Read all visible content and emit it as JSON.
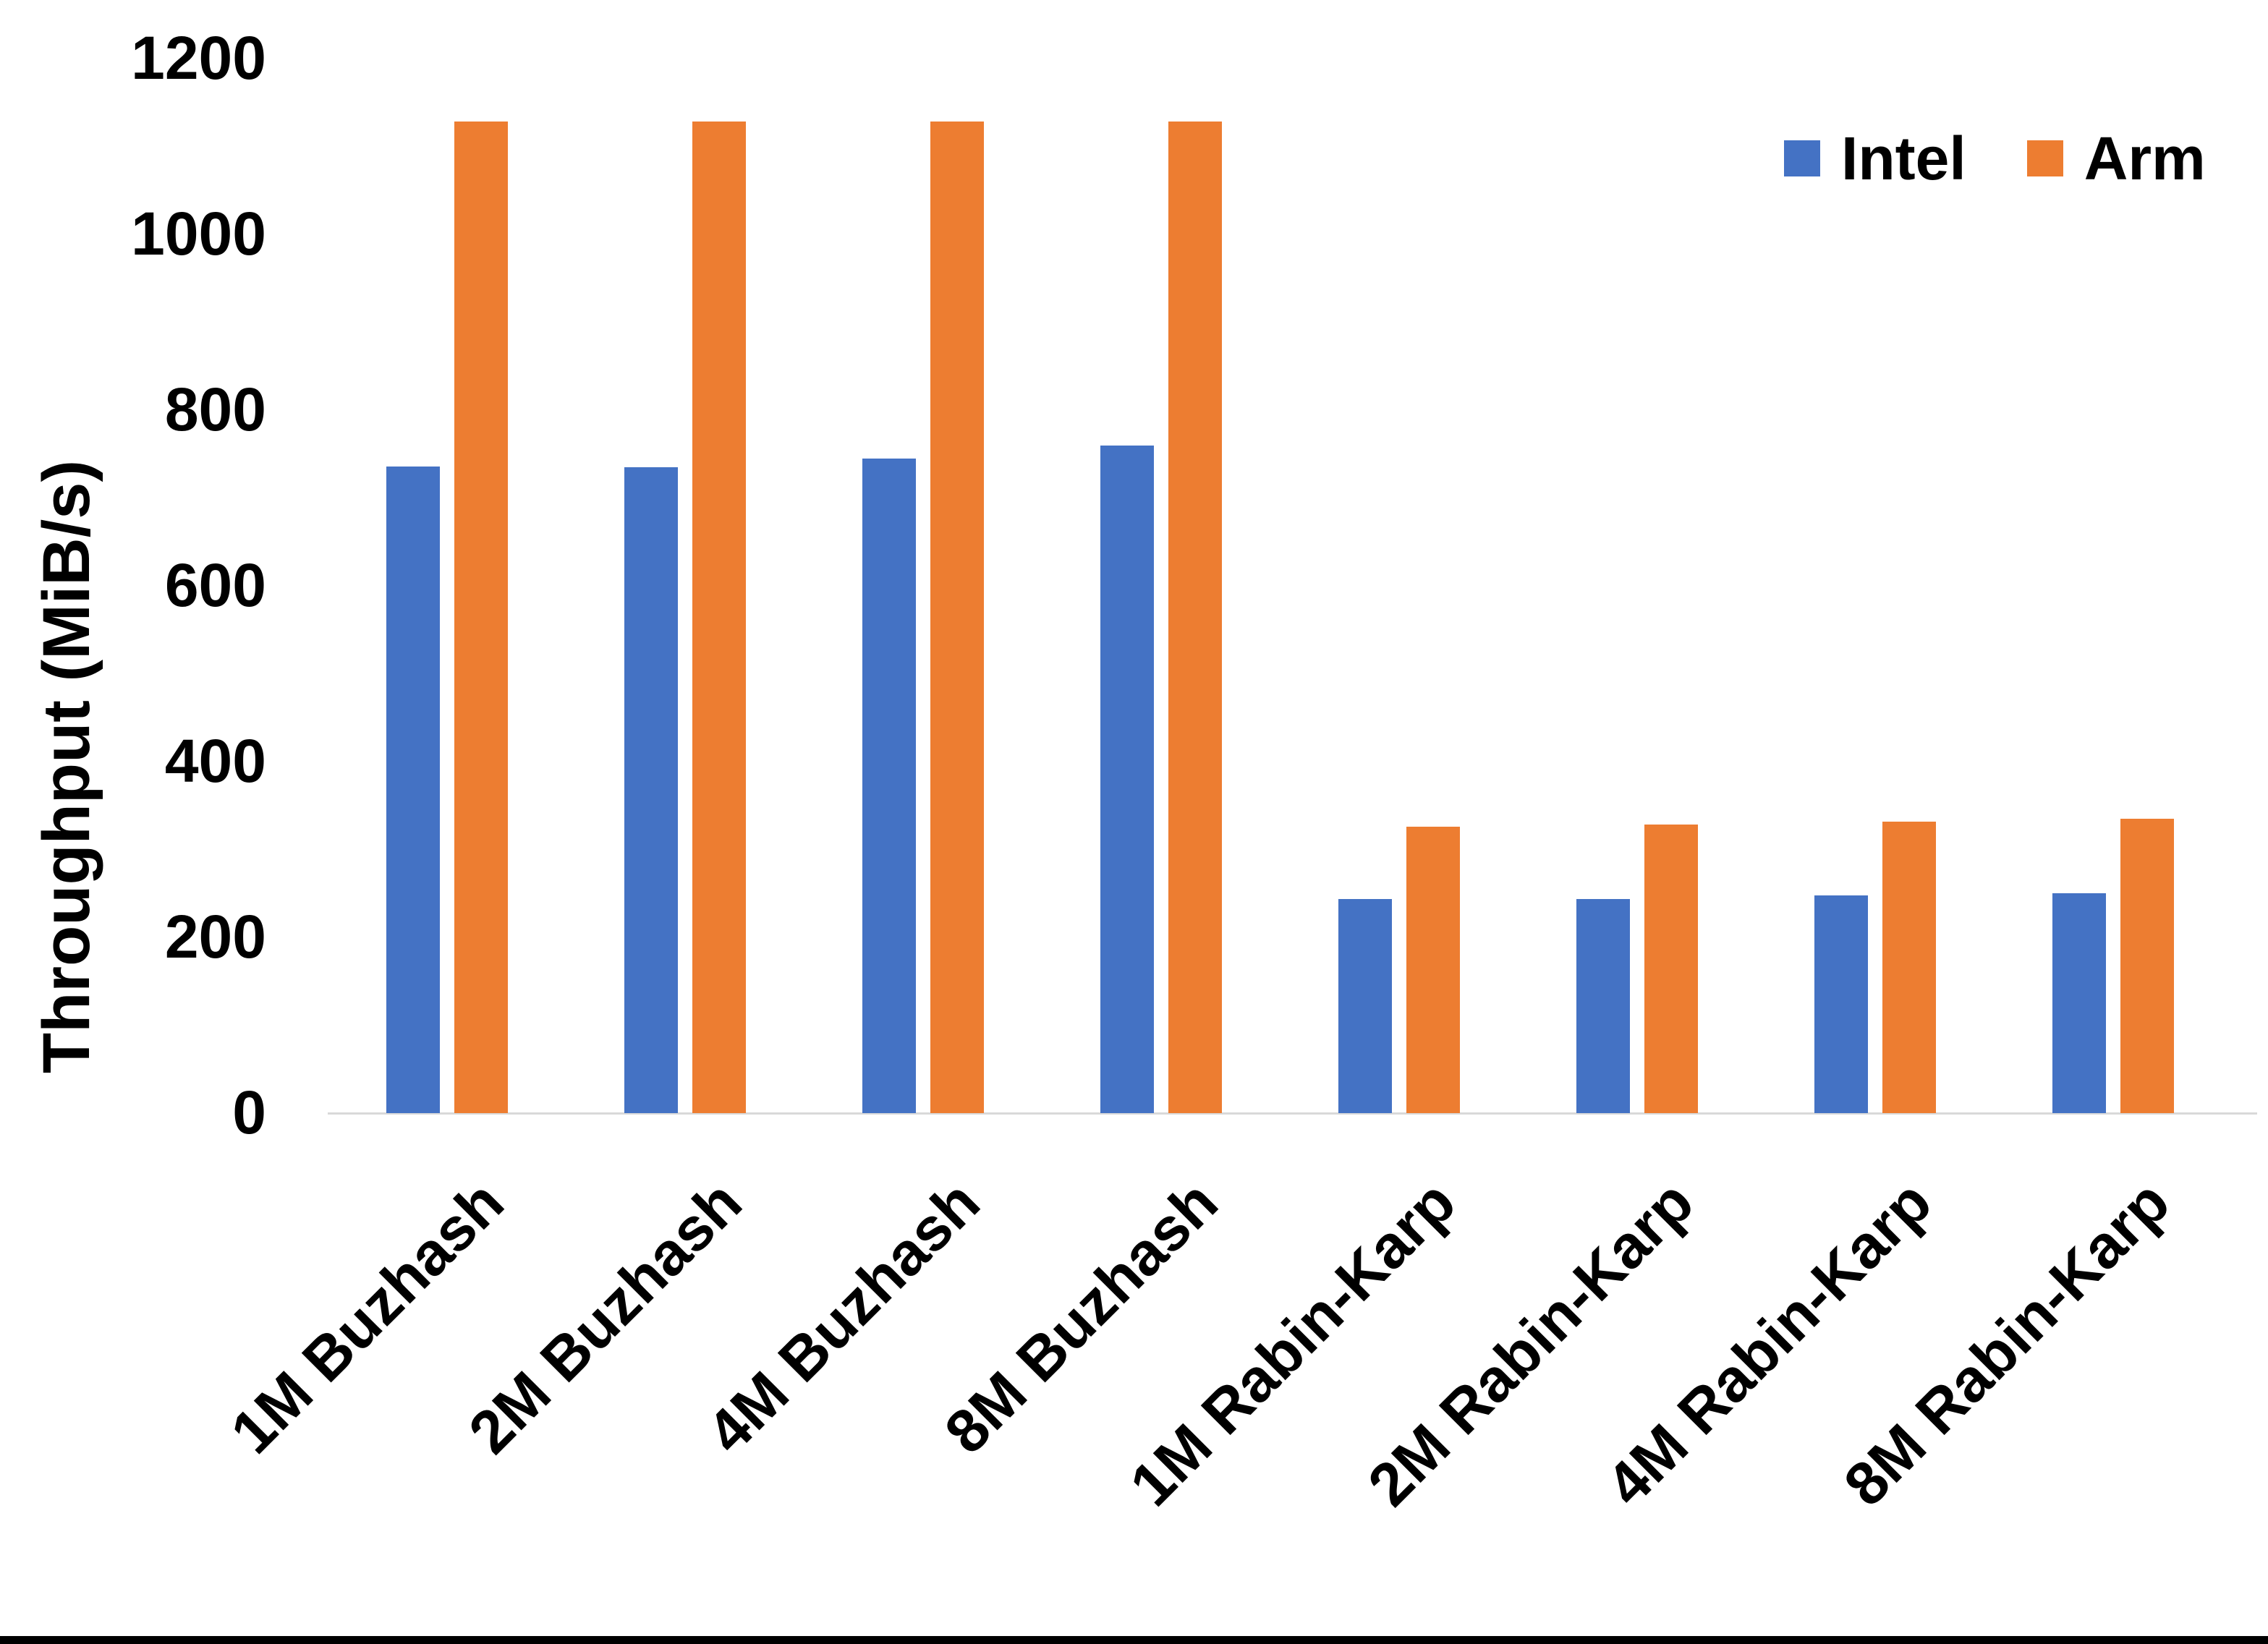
{
  "chart_data": {
    "type": "bar",
    "ylabel": "Throughput (MiB/s)",
    "ylim": [
      0,
      1200
    ],
    "yticks": [
      0,
      200,
      400,
      600,
      800,
      1000,
      1200
    ],
    "grid": false,
    "legend_position": "top-right",
    "categories": [
      "1M Buzhash",
      "2M Buzhash",
      "4M Buzhash",
      "8M Buzhash",
      "1M Rabin-Karp",
      "2M Rabin-Karp",
      "4M Rabin-Karp",
      "8M Rabin-Karp"
    ],
    "series": [
      {
        "name": "Intel",
        "color": "#4472C4",
        "values": [
          736,
          735,
          745,
          760,
          244,
          244,
          248,
          250
        ]
      },
      {
        "name": "Arm",
        "color": "#ED7D31",
        "values": [
          1128,
          1128,
          1128,
          1128,
          326,
          328,
          332,
          335
        ]
      }
    ]
  },
  "colors": {
    "axis_line": "#D9D9D9",
    "text": "#000000",
    "background": "#FFFFFF",
    "bottom_border": "#000000"
  }
}
